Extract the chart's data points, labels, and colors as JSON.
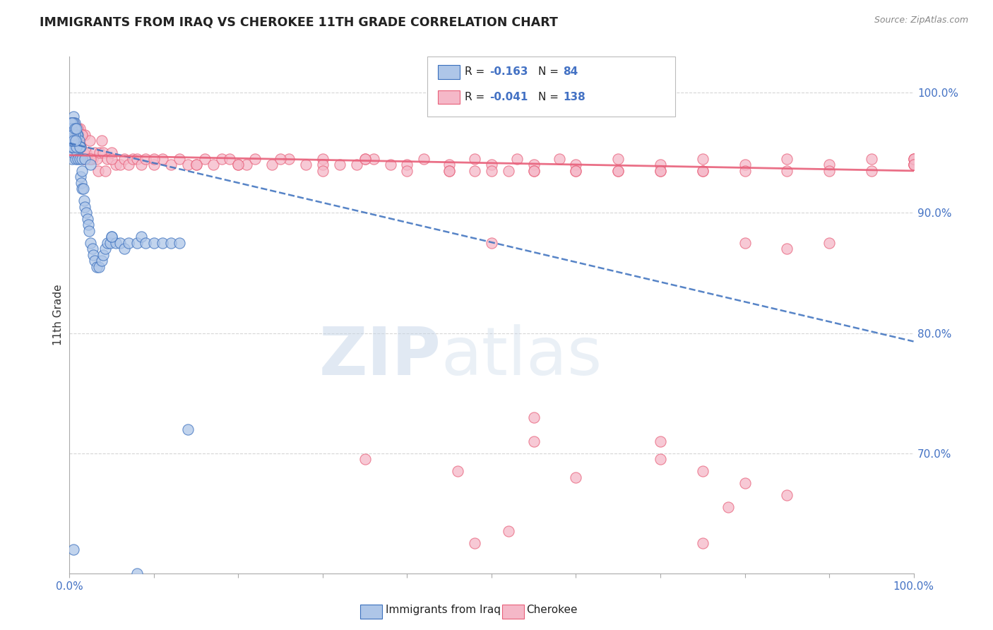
{
  "title": "IMMIGRANTS FROM IRAQ VS CHEROKEE 11TH GRADE CORRELATION CHART",
  "source": "Source: ZipAtlas.com",
  "ylabel": "11th Grade",
  "legend_label_blue": "Immigrants from Iraq",
  "legend_label_pink": "Cherokee",
  "watermark_zip": "ZIP",
  "watermark_atlas": "atlas",
  "blue_color": "#aec6e8",
  "pink_color": "#f5b8c8",
  "trend_blue_color": "#3a6fbd",
  "trend_pink_color": "#e8607a",
  "right_axis_color": "#4472c4",
  "xlim": [
    0.0,
    1.0
  ],
  "ylim": [
    0.6,
    1.03
  ],
  "ytick_vals": [
    0.7,
    0.8,
    0.9,
    1.0
  ],
  "ytick_labels": [
    "70.0%",
    "80.0%",
    "90.0%",
    "100.0%"
  ],
  "background_color": "#ffffff",
  "grid_color": "#cccccc",
  "legend_R_blue": "-0.163",
  "legend_N_blue": "84",
  "legend_R_pink": "-0.041",
  "legend_N_pink": "138",
  "blue_trend_y0": 0.958,
  "blue_trend_y1": 0.793,
  "pink_trend_y0": 0.948,
  "pink_trend_y1": 0.935,
  "blue_x": [
    0.001,
    0.001,
    0.001,
    0.002,
    0.002,
    0.003,
    0.003,
    0.003,
    0.004,
    0.004,
    0.005,
    0.005,
    0.006,
    0.006,
    0.007,
    0.007,
    0.008,
    0.009,
    0.01,
    0.01,
    0.011,
    0.012,
    0.013,
    0.014,
    0.015,
    0.015,
    0.016,
    0.017,
    0.018,
    0.02,
    0.021,
    0.022,
    0.023,
    0.025,
    0.027,
    0.028,
    0.03,
    0.032,
    0.035,
    0.038,
    0.04,
    0.042,
    0.045,
    0.048,
    0.05,
    0.055,
    0.06,
    0.065,
    0.07,
    0.08,
    0.085,
    0.09,
    0.1,
    0.11,
    0.12,
    0.13,
    0.005,
    0.007,
    0.009,
    0.011,
    0.013,
    0.015,
    0.002,
    0.003,
    0.004,
    0.006,
    0.008,
    0.012,
    0.018,
    0.025,
    0.001,
    0.001,
    0.002,
    0.002,
    0.003,
    0.004,
    0.005,
    0.006,
    0.007,
    0.008,
    0.14,
    0.005,
    0.05,
    0.08
  ],
  "blue_y": [
    0.975,
    0.965,
    0.955,
    0.975,
    0.96,
    0.97,
    0.96,
    0.945,
    0.965,
    0.95,
    0.98,
    0.965,
    0.975,
    0.955,
    0.965,
    0.945,
    0.96,
    0.95,
    0.965,
    0.945,
    0.955,
    0.945,
    0.93,
    0.925,
    0.935,
    0.92,
    0.92,
    0.91,
    0.905,
    0.9,
    0.895,
    0.89,
    0.885,
    0.875,
    0.87,
    0.865,
    0.86,
    0.855,
    0.855,
    0.86,
    0.865,
    0.87,
    0.875,
    0.875,
    0.88,
    0.875,
    0.875,
    0.87,
    0.875,
    0.875,
    0.88,
    0.875,
    0.875,
    0.875,
    0.875,
    0.875,
    0.975,
    0.97,
    0.965,
    0.96,
    0.955,
    0.945,
    0.955,
    0.965,
    0.955,
    0.965,
    0.955,
    0.955,
    0.945,
    0.94,
    0.965,
    0.975,
    0.97,
    0.96,
    0.975,
    0.965,
    0.96,
    0.97,
    0.96,
    0.97,
    0.72,
    0.62,
    0.88,
    0.6
  ],
  "pink_x": [
    0.001,
    0.002,
    0.003,
    0.004,
    0.005,
    0.006,
    0.007,
    0.008,
    0.009,
    0.01,
    0.011,
    0.012,
    0.013,
    0.015,
    0.016,
    0.017,
    0.018,
    0.02,
    0.022,
    0.024,
    0.025,
    0.027,
    0.03,
    0.032,
    0.034,
    0.036,
    0.038,
    0.04,
    0.042,
    0.045,
    0.05,
    0.055,
    0.06,
    0.065,
    0.07,
    0.075,
    0.08,
    0.085,
    0.09,
    0.1,
    0.11,
    0.12,
    0.13,
    0.14,
    0.15,
    0.16,
    0.17,
    0.18,
    0.19,
    0.2,
    0.21,
    0.22,
    0.24,
    0.26,
    0.28,
    0.3,
    0.32,
    0.34,
    0.36,
    0.38,
    0.4,
    0.42,
    0.45,
    0.48,
    0.5,
    0.53,
    0.55,
    0.58,
    0.6,
    0.65,
    0.7,
    0.75,
    0.8,
    0.85,
    0.9,
    0.95,
    1.0,
    1.0,
    1.0,
    1.0,
    1.0,
    1.0,
    1.0,
    0.002,
    0.003,
    0.004,
    0.005,
    0.006,
    0.01,
    0.015,
    0.025,
    0.05,
    0.1,
    0.15,
    0.2,
    0.25,
    0.3,
    0.35,
    0.4,
    0.45,
    0.5,
    0.55,
    0.6,
    0.65,
    0.7,
    0.75,
    0.8,
    0.85,
    0.9,
    0.95,
    0.3,
    0.35,
    0.5,
    0.48,
    0.45,
    0.52,
    0.55,
    0.6,
    0.65,
    0.7,
    0.75,
    0.8,
    0.85,
    0.9,
    0.55,
    0.35,
    0.46,
    0.78,
    0.55,
    0.6,
    0.7,
    0.75,
    0.52,
    0.48,
    0.7,
    0.75,
    0.8,
    0.85
  ],
  "pink_y": [
    0.965,
    0.97,
    0.96,
    0.955,
    0.975,
    0.965,
    0.97,
    0.955,
    0.965,
    0.96,
    0.95,
    0.97,
    0.955,
    0.965,
    0.95,
    0.945,
    0.965,
    0.95,
    0.945,
    0.96,
    0.945,
    0.945,
    0.95,
    0.945,
    0.935,
    0.95,
    0.96,
    0.95,
    0.935,
    0.945,
    0.95,
    0.94,
    0.94,
    0.945,
    0.94,
    0.945,
    0.945,
    0.94,
    0.945,
    0.94,
    0.945,
    0.94,
    0.945,
    0.94,
    0.94,
    0.945,
    0.94,
    0.945,
    0.945,
    0.94,
    0.94,
    0.945,
    0.94,
    0.945,
    0.94,
    0.945,
    0.94,
    0.94,
    0.945,
    0.94,
    0.94,
    0.945,
    0.94,
    0.945,
    0.94,
    0.945,
    0.94,
    0.945,
    0.94,
    0.945,
    0.94,
    0.945,
    0.94,
    0.945,
    0.94,
    0.945,
    0.94,
    0.945,
    0.94,
    0.945,
    0.94,
    0.945,
    0.94,
    0.975,
    0.97,
    0.965,
    0.975,
    0.97,
    0.97,
    0.965,
    0.945,
    0.945,
    0.945,
    0.94,
    0.94,
    0.945,
    0.94,
    0.945,
    0.935,
    0.935,
    0.935,
    0.935,
    0.935,
    0.935,
    0.935,
    0.935,
    0.935,
    0.87,
    0.935,
    0.935,
    0.935,
    0.945,
    0.875,
    0.935,
    0.935,
    0.935,
    0.935,
    0.935,
    0.935,
    0.935,
    0.935,
    0.875,
    0.935,
    0.875,
    0.73,
    0.695,
    0.685,
    0.655,
    0.71,
    0.68,
    0.71,
    0.625,
    0.635,
    0.625,
    0.695,
    0.685,
    0.675,
    0.665
  ]
}
